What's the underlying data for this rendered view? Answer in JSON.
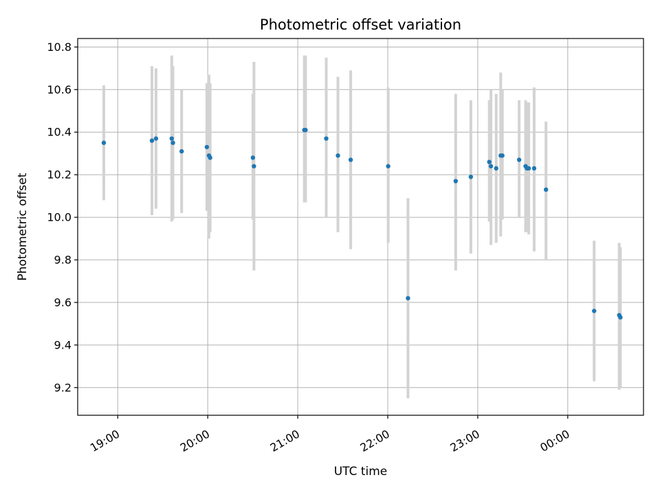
{
  "chart_data": {
    "type": "scatter",
    "title": "Photometric offset variation",
    "xlabel": "UTC time",
    "ylabel": "Photometric offset",
    "grid": true,
    "colors": {
      "point": "#1f77b4",
      "errorbar": "#d3d3d3",
      "grid": "#b0b0b0",
      "axis": "#000000"
    },
    "x_unit": "minutes since 18:00 UTC",
    "xlim": [
      33.3,
      410.5
    ],
    "ylim": [
      9.07,
      10.84
    ],
    "x_ticks": [
      {
        "value": 60,
        "label": "19:00"
      },
      {
        "value": 120,
        "label": "20:00"
      },
      {
        "value": 180,
        "label": "21:00"
      },
      {
        "value": 240,
        "label": "22:00"
      },
      {
        "value": 300,
        "label": "23:00"
      },
      {
        "value": 360,
        "label": "00:00"
      }
    ],
    "y_ticks": [
      {
        "value": 9.2,
        "label": "9.2"
      },
      {
        "value": 9.4,
        "label": "9.4"
      },
      {
        "value": 9.6,
        "label": "9.6"
      },
      {
        "value": 9.8,
        "label": "9.8"
      },
      {
        "value": 10.0,
        "label": "10.0"
      },
      {
        "value": 10.2,
        "label": "10.2"
      },
      {
        "value": 10.4,
        "label": "10.4"
      },
      {
        "value": 10.6,
        "label": "10.6"
      },
      {
        "value": 10.8,
        "label": "10.8"
      }
    ],
    "points": [
      {
        "x": 50.7,
        "y": 10.35,
        "ylo": 10.08,
        "yhi": 10.62
      },
      {
        "x": 82.8,
        "y": 10.36,
        "ylo": 10.01,
        "yhi": 10.71
      },
      {
        "x": 85.5,
        "y": 10.37,
        "ylo": 10.04,
        "yhi": 10.7
      },
      {
        "x": 96.0,
        "y": 10.37,
        "ylo": 9.98,
        "yhi": 10.76
      },
      {
        "x": 96.8,
        "y": 10.35,
        "ylo": 9.99,
        "yhi": 10.71
      },
      {
        "x": 102.6,
        "y": 10.31,
        "ylo": 10.02,
        "yhi": 10.6
      },
      {
        "x": 119.4,
        "y": 10.33,
        "ylo": 10.03,
        "yhi": 10.63
      },
      {
        "x": 120.8,
        "y": 10.29,
        "ylo": 9.9,
        "yhi": 10.67
      },
      {
        "x": 121.6,
        "y": 10.28,
        "ylo": 9.93,
        "yhi": 10.63
      },
      {
        "x": 150.1,
        "y": 10.28,
        "ylo": 9.99,
        "yhi": 10.58
      },
      {
        "x": 150.8,
        "y": 10.24,
        "ylo": 9.75,
        "yhi": 10.73
      },
      {
        "x": 184.4,
        "y": 10.41,
        "ylo": 10.07,
        "yhi": 10.76
      },
      {
        "x": 185.2,
        "y": 10.41,
        "ylo": 10.07,
        "yhi": 10.76
      },
      {
        "x": 199.0,
        "y": 10.37,
        "ylo": 10.0,
        "yhi": 10.75
      },
      {
        "x": 206.8,
        "y": 10.29,
        "ylo": 9.93,
        "yhi": 10.66
      },
      {
        "x": 215.3,
        "y": 10.27,
        "ylo": 9.85,
        "yhi": 10.69
      },
      {
        "x": 240.3,
        "y": 10.24,
        "ylo": 9.88,
        "yhi": 10.61
      },
      {
        "x": 253.5,
        "y": 9.62,
        "ylo": 9.15,
        "yhi": 10.09
      },
      {
        "x": 285.3,
        "y": 10.17,
        "ylo": 9.75,
        "yhi": 10.58
      },
      {
        "x": 295.4,
        "y": 10.19,
        "ylo": 9.83,
        "yhi": 10.55
      },
      {
        "x": 307.7,
        "y": 10.26,
        "ylo": 9.98,
        "yhi": 10.55
      },
      {
        "x": 308.8,
        "y": 10.24,
        "ylo": 9.87,
        "yhi": 10.6
      },
      {
        "x": 312.3,
        "y": 10.23,
        "ylo": 9.88,
        "yhi": 10.58
      },
      {
        "x": 315.3,
        "y": 10.29,
        "ylo": 9.91,
        "yhi": 10.68
      },
      {
        "x": 316.4,
        "y": 10.29,
        "ylo": 9.99,
        "yhi": 10.6
      },
      {
        "x": 327.6,
        "y": 10.27,
        "ylo": 10.0,
        "yhi": 10.55
      },
      {
        "x": 331.9,
        "y": 10.24,
        "ylo": 9.93,
        "yhi": 10.55
      },
      {
        "x": 332.8,
        "y": 10.23,
        "ylo": 9.93,
        "yhi": 10.54
      },
      {
        "x": 334.0,
        "y": 10.23,
        "ylo": 9.92,
        "yhi": 10.54
      },
      {
        "x": 337.6,
        "y": 10.23,
        "ylo": 9.84,
        "yhi": 10.61
      },
      {
        "x": 345.5,
        "y": 10.13,
        "ylo": 9.8,
        "yhi": 10.45
      },
      {
        "x": 377.6,
        "y": 9.56,
        "ylo": 9.23,
        "yhi": 9.89
      },
      {
        "x": 394.3,
        "y": 9.54,
        "ylo": 9.19,
        "yhi": 9.88
      },
      {
        "x": 395.1,
        "y": 9.53,
        "ylo": 9.2,
        "yhi": 9.86
      }
    ]
  }
}
